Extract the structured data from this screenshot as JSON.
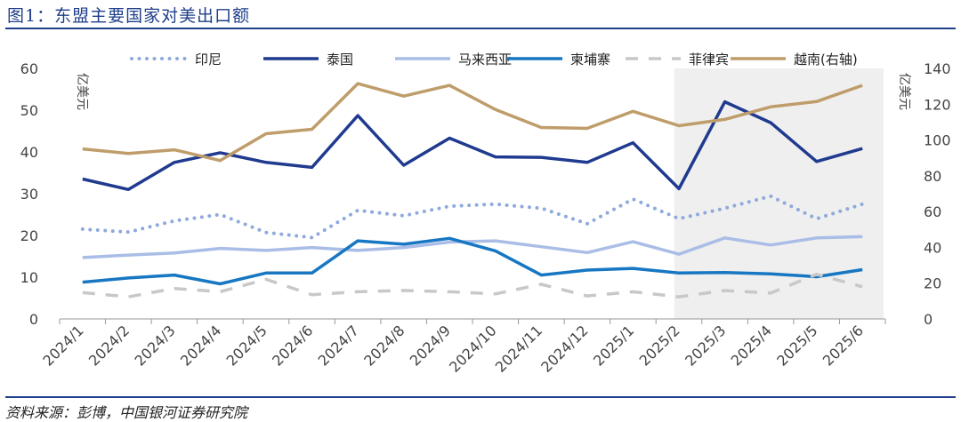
{
  "figure": {
    "title": "图1：东盟主要国家对美出口额",
    "source": "资料来源：彭博，中国银河证券研究院"
  },
  "colors": {
    "印尼": "#8ea9dc",
    "泰国": "#1f3a8f",
    "马来西亚": "#a9bde6",
    "柬埔寨": "#1777c2",
    "菲律宾": "#c8c8c8",
    "越南(右轴)": "#bf9d6b",
    "shade": "#efefef",
    "axis": "#999999"
  },
  "chart_data": {
    "type": "line",
    "categories": [
      "2024/1",
      "2024/2",
      "2024/3",
      "2024/4",
      "2024/5",
      "2024/6",
      "2024/7",
      "2024/8",
      "2024/9",
      "2024/10",
      "2024/11",
      "2024/12",
      "2025/1",
      "2025/2",
      "2025/3",
      "2025/4",
      "2025/5",
      "2025/6"
    ],
    "series": [
      {
        "name": "印尼",
        "axis": "left",
        "style": "dotted",
        "values": [
          21.5,
          20.8,
          23.5,
          25.0,
          20.7,
          19.5,
          26.0,
          24.7,
          27.0,
          27.5,
          26.5,
          22.8,
          28.7,
          24.0,
          26.5,
          29.4,
          24.0,
          27.5
        ]
      },
      {
        "name": "泰国",
        "axis": "left",
        "style": "solid",
        "values": [
          33.5,
          31.0,
          37.5,
          39.8,
          37.5,
          36.3,
          48.7,
          36.8,
          43.3,
          38.8,
          38.7,
          37.5,
          42.2,
          31.2,
          52.0,
          47.0,
          37.7,
          40.8
        ]
      },
      {
        "name": "马来西亚",
        "axis": "left",
        "style": "solid",
        "values": [
          14.7,
          15.3,
          15.8,
          16.9,
          16.4,
          17.1,
          16.4,
          17.1,
          18.4,
          18.7,
          17.3,
          15.9,
          18.5,
          15.5,
          19.4,
          17.7,
          19.4,
          19.7
        ]
      },
      {
        "name": "柬埔寨",
        "axis": "left",
        "style": "solid",
        "values": [
          8.8,
          9.8,
          10.5,
          8.4,
          11.0,
          11.0,
          18.7,
          17.9,
          19.3,
          16.3,
          10.5,
          11.7,
          12.1,
          11.0,
          11.1,
          10.8,
          10.1,
          11.8
        ]
      },
      {
        "name": "菲律宾",
        "axis": "left",
        "style": "dashed",
        "values": [
          6.3,
          5.3,
          7.3,
          6.5,
          9.5,
          5.8,
          6.5,
          6.8,
          6.5,
          6.0,
          8.3,
          5.5,
          6.5,
          5.3,
          6.8,
          6.2,
          10.7,
          7.7
        ]
      },
      {
        "name": "越南(右轴)",
        "axis": "right",
        "style": "solid",
        "values": [
          95,
          92.5,
          94.5,
          88.5,
          103.5,
          106,
          131.5,
          124.5,
          130.5,
          117,
          107,
          106.5,
          116,
          108,
          111.5,
          118.5,
          121.5,
          130.5
        ]
      }
    ],
    "y_left": {
      "label": "亿美元",
      "min": 0,
      "max": 60,
      "ticks": [
        0,
        10,
        20,
        30,
        40,
        50,
        60
      ]
    },
    "y_right": {
      "label": "亿美元",
      "min": 0,
      "max": 140,
      "ticks": [
        0,
        20,
        40,
        60,
        80,
        100,
        120,
        140
      ]
    },
    "shaded_from_category": "2025/3",
    "shaded_to_category": "2025/6",
    "legend": [
      "印尼",
      "泰国",
      "马来西亚",
      "柬埔寨",
      "菲律宾",
      "越南(右轴)"
    ],
    "legend_position": "top",
    "grid": false
  }
}
